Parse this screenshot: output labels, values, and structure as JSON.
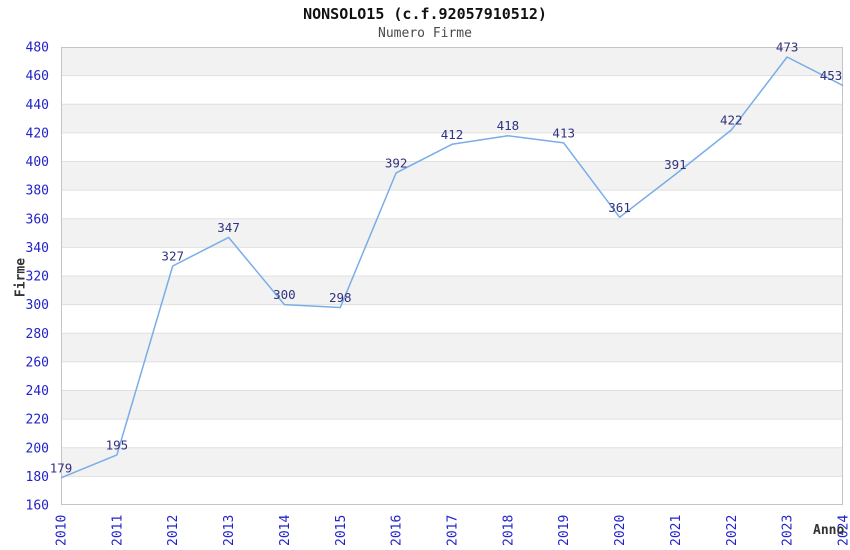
{
  "chart_data": {
    "type": "line",
    "title": "NONSOLO15 (c.f.92057910512)",
    "subtitle": "Numero Firme",
    "xlabel": "Anno",
    "ylabel": "Firme",
    "categories": [
      "2010",
      "2011",
      "2012",
      "2013",
      "2014",
      "2015",
      "2016",
      "2017",
      "2018",
      "2019",
      "2020",
      "2021",
      "2022",
      "2023",
      "2024"
    ],
    "values": [
      179,
      195,
      327,
      347,
      300,
      298,
      392,
      412,
      418,
      413,
      361,
      391,
      422,
      473,
      453
    ],
    "ylim": [
      160,
      480
    ],
    "ytick_step": 20,
    "grid": "horizontal-lines-with-alternating-bands",
    "legend": "none",
    "x_tick_rotation": -90
  },
  "colors": {
    "line": "#79ade8",
    "tick_label": "#2222cc",
    "point_label": "#32327f",
    "band_gray": "#f2f2f2",
    "gridline": "#e0e0e0",
    "plot_border": "#c4c4c4"
  }
}
